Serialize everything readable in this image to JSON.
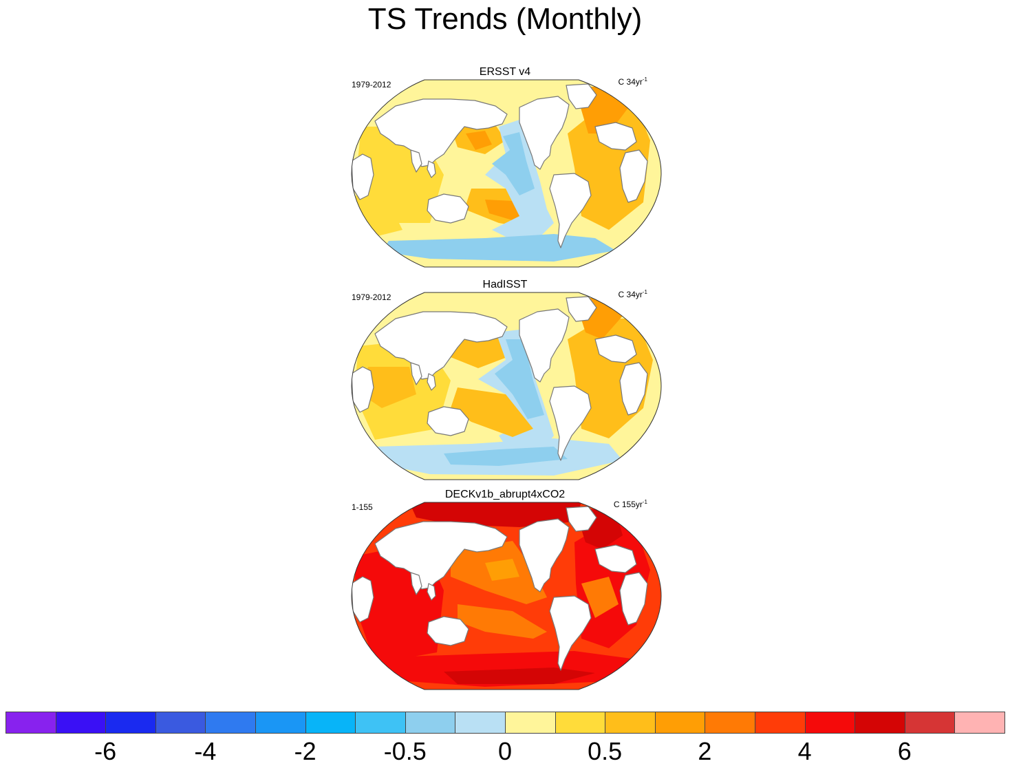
{
  "title": "TS Trends (Monthly)",
  "panels": [
    {
      "name": "ERSST v4",
      "period": "1979-2012",
      "units_main": "C 34yr",
      "units_sup": "-1",
      "scheme": "obs1"
    },
    {
      "name": "HadISST",
      "period": "1979-2012",
      "units_main": "C 34yr",
      "units_sup": "-1",
      "scheme": "obs2"
    },
    {
      "name": "DECKv1b_abrupt4xCO2",
      "period": "1-155",
      "units_main": "C 155yr",
      "units_sup": "-1",
      "scheme": "model"
    }
  ],
  "colorbar": {
    "colors": [
      "#8822ee",
      "#3a10f5",
      "#1a2af0",
      "#3a5ae0",
      "#2f7af0",
      "#1a96f5",
      "#08b4f8",
      "#3ec2f5",
      "#8ecfee",
      "#b9e0f4",
      "#fff59a",
      "#ffdc3a",
      "#ffbe1a",
      "#ff9e05",
      "#ff7a05",
      "#ff3c08",
      "#f50a0a",
      "#d40505",
      "#d63535",
      "#ffb3b3"
    ],
    "labels": [
      {
        "text": "-6",
        "boundary": 2
      },
      {
        "text": "-4",
        "boundary": 4
      },
      {
        "text": "-2",
        "boundary": 6
      },
      {
        "text": "-0.5",
        "boundary": 8
      },
      {
        "text": "0",
        "boundary": 10
      },
      {
        "text": "0.5",
        "boundary": 12
      },
      {
        "text": "2",
        "boundary": 14
      },
      {
        "text": "4",
        "boundary": 16
      },
      {
        "text": "6",
        "boundary": 18
      }
    ]
  }
}
